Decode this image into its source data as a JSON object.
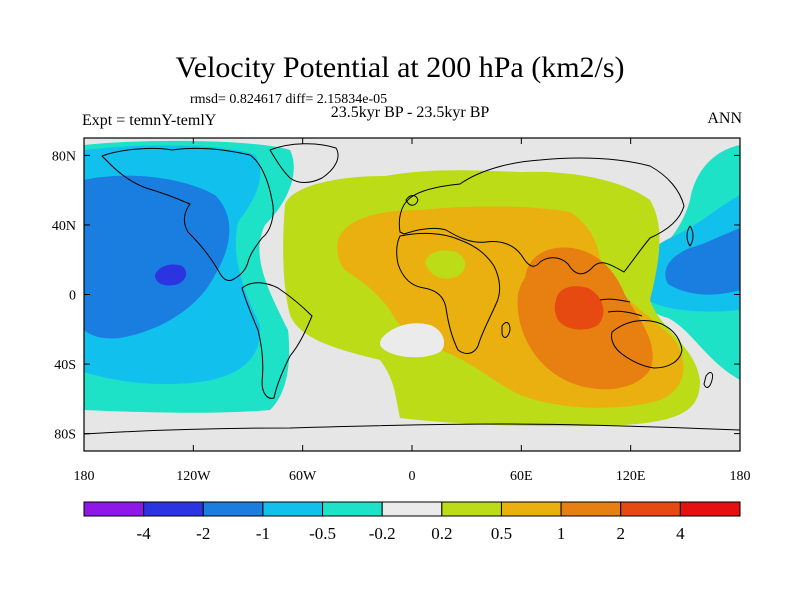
{
  "title": "Velocity Potential at 200 hPa (km2/s)",
  "stats": "rmsd= 0.824617 diff= 2.15834e-05",
  "period": "23.5kyr BP - 23.5kyr BP",
  "experiment": "Expt = temnY-temlY",
  "season": "ANN",
  "map": {
    "projection": "cylindrical-equidistant",
    "lon_range": [
      -180,
      180
    ],
    "lat_range": [
      -90,
      90
    ],
    "lon_ticks": [
      "180",
      "120W",
      "60W",
      "0",
      "60E",
      "120E",
      "180"
    ],
    "lat_ticks": [
      "80N",
      "40N",
      "0",
      "40S",
      "80S"
    ],
    "background": "#e6e6e6",
    "coastline_color": "#000000"
  },
  "colorbar": {
    "labels": [
      "-4",
      "-2",
      "-1",
      "-0.5",
      "-0.2",
      "0.2",
      "0.5",
      "1",
      "2",
      "4"
    ],
    "colors": [
      "#8f18e8",
      "#2b34e0",
      "#1a7ee0",
      "#12c0ee",
      "#1de2c8",
      "#ebebeb",
      "#bbdc16",
      "#e9b010",
      "#e78010",
      "#e64a10",
      "#e61010"
    ]
  }
}
